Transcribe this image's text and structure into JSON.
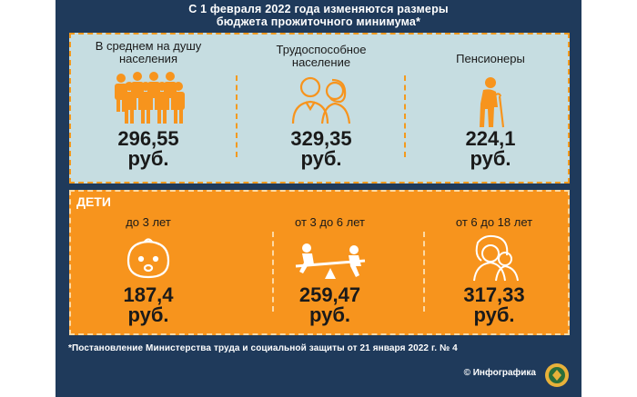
{
  "title": {
    "line1": "С 1 февраля 2022 года изменяются размеры",
    "line2": "бюджета прожиточного минимума*"
  },
  "adults": [
    {
      "label_line1": "В среднем на душу",
      "label_line2": "населения",
      "value_line1": "296,55",
      "value_line2": "руб.",
      "icon": "crowd-icon"
    },
    {
      "label_line1": "Трудоспособное",
      "label_line2": "население",
      "value_line1": "329,35",
      "value_line2": "руб.",
      "icon": "couple-icon"
    },
    {
      "label_line1": "Пенсионеры",
      "label_line2": "",
      "value_line1": "224,1",
      "value_line2": "руб.",
      "icon": "elderly-person-icon"
    }
  ],
  "children": {
    "title": "ДЕТИ",
    "groups": [
      {
        "label": "до 3 лет",
        "value_line1": "187,4",
        "value_line2": "руб.",
        "icon": "baby-face-icon"
      },
      {
        "label": "от 3 до 6 лет",
        "value_line1": "259,47",
        "value_line2": "руб.",
        "icon": "seesaw-icon"
      },
      {
        "label": "от 6 до 18 лет",
        "value_line1": "317,33",
        "value_line2": "руб.",
        "icon": "teenagers-icon"
      }
    ]
  },
  "footnote": "*Постановление Министерства труда и социальной защиты от 21 января 2022 г. № 4",
  "credit": "© Инфографика",
  "colors": {
    "background": "#1f3a5b",
    "orange": "#f7941d",
    "light_panel": "#c6dde1"
  }
}
